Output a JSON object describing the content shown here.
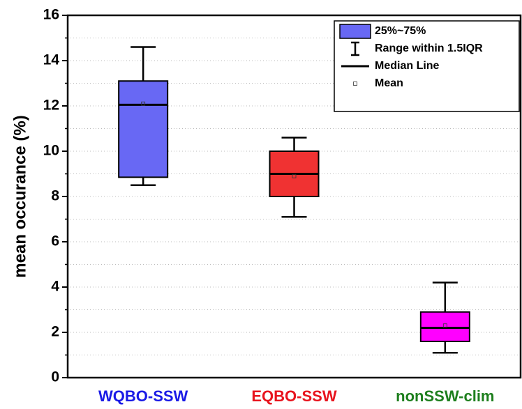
{
  "chart_data": {
    "type": "box",
    "y_label": "mean occurance (%)",
    "categories": [
      "WQBO-SSW",
      "EQBO-SSW",
      "nonSSW-clim"
    ],
    "category_colors": [
      "#1a1ae6",
      "#e8141e",
      "#1e7f1e"
    ],
    "boxes": [
      {
        "whisker_low": 8.5,
        "q1": 8.85,
        "median": 12.05,
        "q3": 13.1,
        "whisker_high": 14.6,
        "mean": 12.1,
        "color": "#6868f4"
      },
      {
        "whisker_low": 7.1,
        "q1": 8.0,
        "median": 9.0,
        "q3": 10.0,
        "whisker_high": 10.6,
        "mean": 8.9,
        "color": "#f03232"
      },
      {
        "whisker_low": 1.1,
        "q1": 1.6,
        "median": 2.2,
        "q3": 2.9,
        "whisker_high": 4.2,
        "mean": 2.3,
        "color": "#ff00ff"
      }
    ],
    "ylim": [
      0,
      16
    ],
    "yticks": [
      0,
      2,
      4,
      6,
      8,
      10,
      12,
      14,
      16
    ],
    "yminor_ticks": [
      1,
      3,
      5,
      7,
      9,
      11,
      13,
      15
    ],
    "grid": true,
    "legend": [
      "25%~75%",
      "Range within 1.5IQR",
      "Median Line",
      "Mean"
    ],
    "legend_position": "upper right"
  }
}
